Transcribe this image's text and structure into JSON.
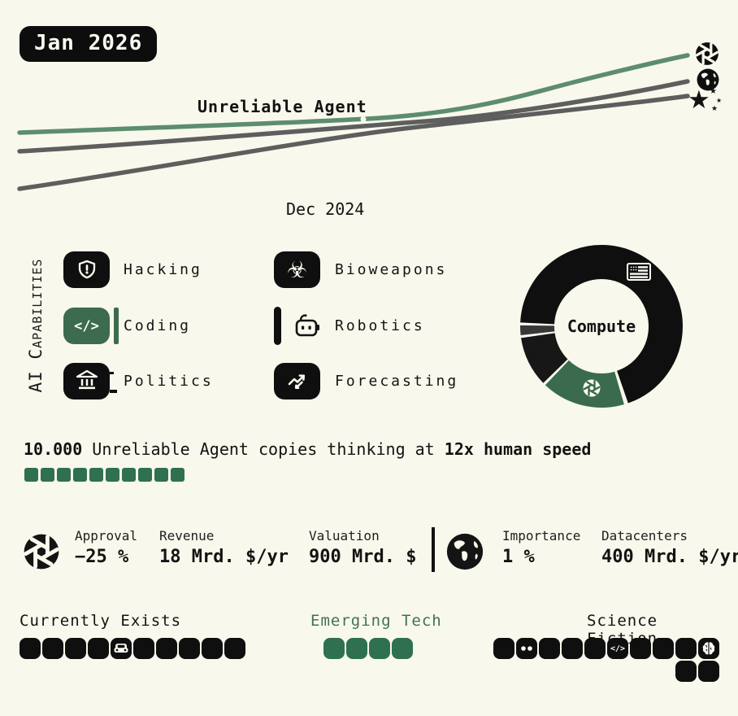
{
  "colors": {
    "background": "#f9f8ec",
    "black": "#0f0f0f",
    "accent_green": "#3c6b4e",
    "square_green": "#2f7050",
    "line_green": "#5c8d6e",
    "line_gray": "#5e5e5e",
    "sliver_gray": "#383838",
    "emerging_text_green": "#3f7254"
  },
  "header": {
    "date_badge": "Jan 2026"
  },
  "chart": {
    "type": "line",
    "annotation": "Unreliable Agent",
    "axis_start_label": "Dec 2024",
    "series": [
      {
        "name": "Unreliable Agent",
        "icon": "aperture-icon",
        "color": "#5c8d6e"
      },
      {
        "name": "World",
        "icon": "globe-icon",
        "color": "#5e5e5e"
      },
      {
        "name": "Star",
        "icon": "star-sparkles-icon",
        "color": "#5e5e5e"
      }
    ]
  },
  "capabilities": {
    "axis_label": "AI Capabilities",
    "items": [
      {
        "label": "Hacking",
        "icon": "shield-alert-icon",
        "variant": "black"
      },
      {
        "label": "Coding",
        "icon": "code-icon",
        "variant": "green",
        "marker": "bar-after"
      },
      {
        "label": "Politics",
        "icon": "bank-icon",
        "variant": "black"
      },
      {
        "label": "Bioweapons",
        "icon": "biohazard-icon",
        "variant": "black"
      },
      {
        "label": "Robotics",
        "icon": "robot-icon",
        "variant": "outline",
        "marker": "bar-before"
      },
      {
        "label": "Forecasting",
        "icon": "trend-arrows-icon",
        "variant": "black"
      }
    ]
  },
  "compute_donut": {
    "center_label": "Compute",
    "slices": [
      {
        "name": "majority",
        "color": "#0f0f0f",
        "start": 273,
        "sweep": 248,
        "icon": "us-flag-icon"
      },
      {
        "name": "agent",
        "color": "#3a6b4e",
        "start": 164,
        "sweep": 60,
        "icon": "aperture-icon"
      },
      {
        "name": "secondary",
        "color": "#171717",
        "start": 226,
        "sweep": 36
      },
      {
        "name": "sliver",
        "color": "#383838",
        "start": 264,
        "sweep": 7
      }
    ]
  },
  "agent_status": {
    "copies": "10.000",
    "text_middle": " Unreliable Agent copies thinking at ",
    "speed": "12x human speed",
    "progress_squares": 10
  },
  "stats": {
    "groups": [
      {
        "icon": "aperture-icon",
        "items": [
          {
            "label": "Approval",
            "value": "−25 %"
          },
          {
            "label": "Revenue",
            "value": "18 Mrd. $/yr"
          },
          {
            "label": "Valuation",
            "value": "900 Mrd. $"
          }
        ]
      },
      {
        "icon": "globe-icon",
        "items": [
          {
            "label": "Importance",
            "value": "1 %"
          },
          {
            "label": "Datacenters",
            "value": "400 Mrd. $/yr"
          }
        ]
      }
    ]
  },
  "tracks": {
    "currently_exists": {
      "label": "Currently Exists",
      "squares": [
        "",
        "",
        "",
        "",
        "car",
        "",
        "",
        "",
        "",
        ""
      ]
    },
    "emerging_tech": {
      "label": "Emerging Tech",
      "squares": [
        "",
        "",
        "",
        ""
      ]
    },
    "science_fiction": {
      "label": "Science Fiction",
      "squares_row1": [
        "",
        "eyes",
        "",
        "",
        "",
        "code",
        "",
        "",
        "",
        "brain"
      ],
      "squares_row2": [
        "",
        ""
      ]
    }
  }
}
